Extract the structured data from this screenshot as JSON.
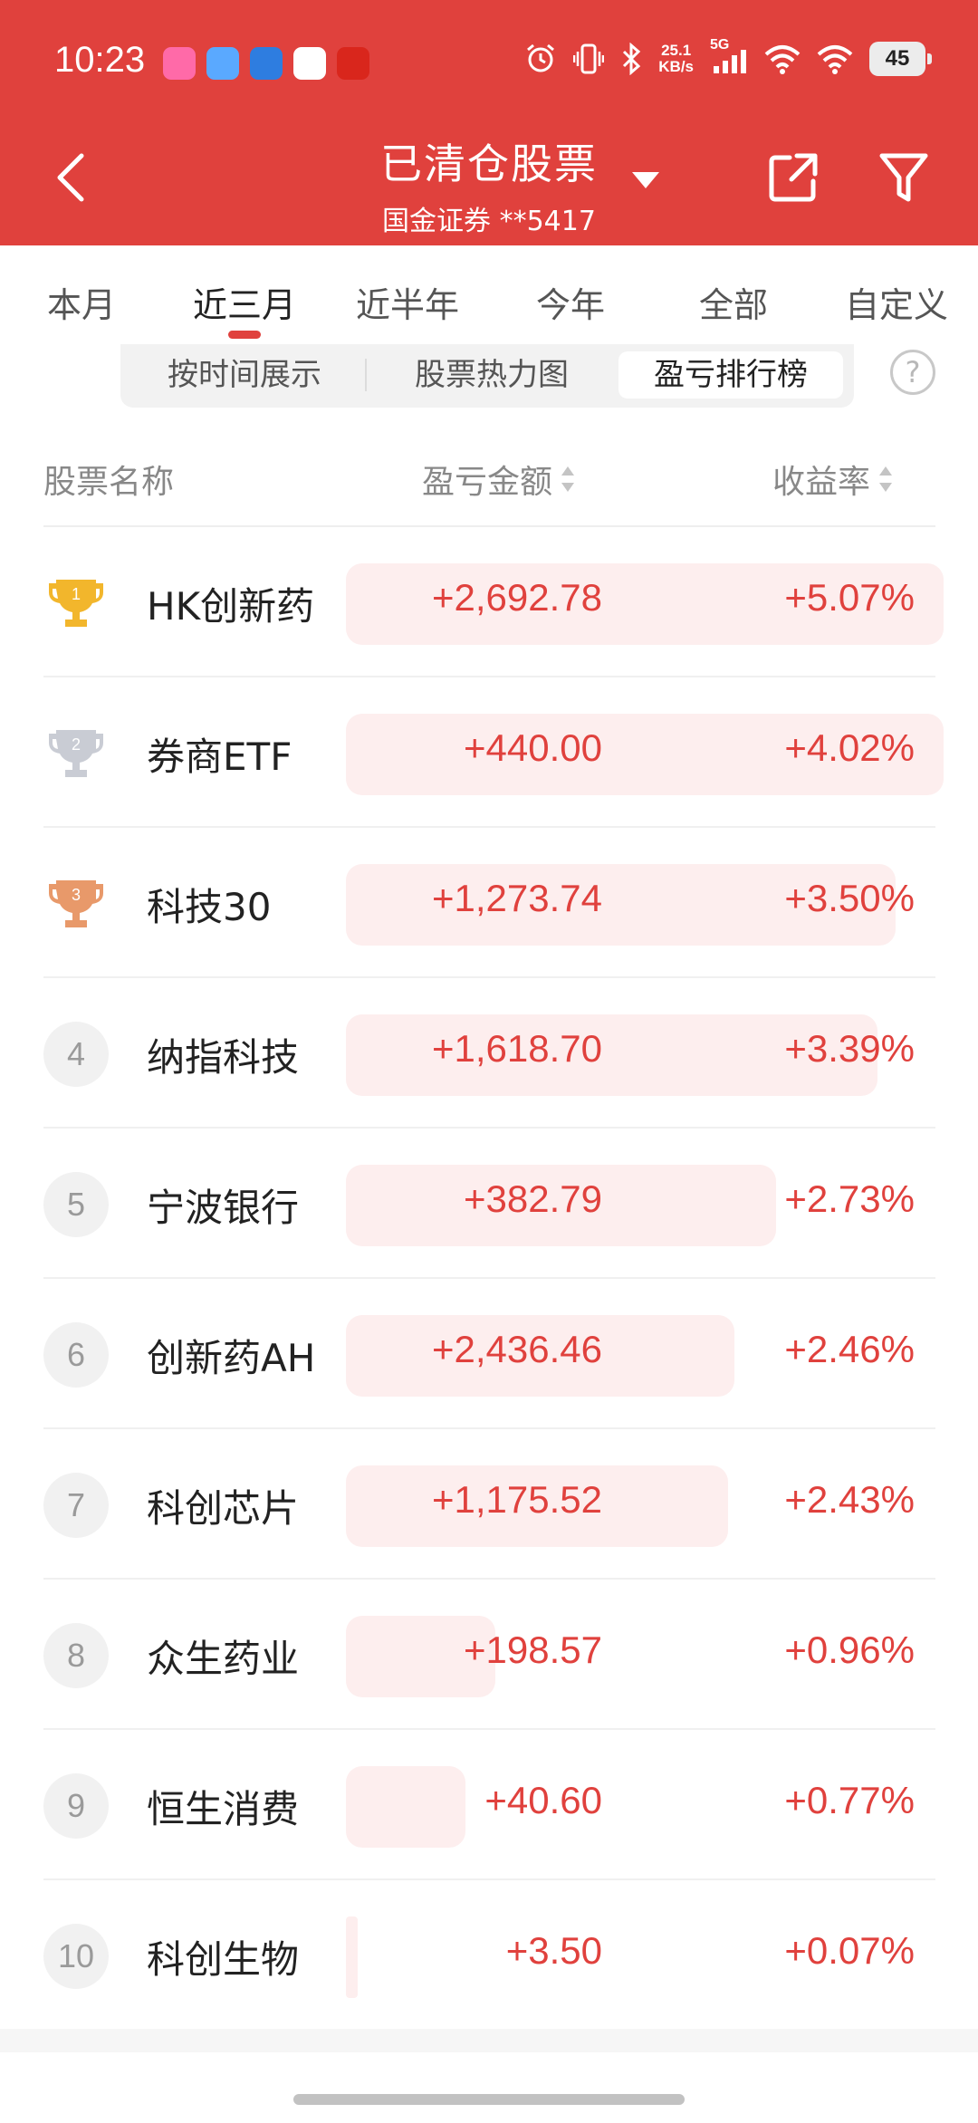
{
  "status_bar": {
    "time": "10:23",
    "net_speed_value": "25.1",
    "net_speed_unit": "KB/s",
    "signal_label": "5G",
    "battery": "45",
    "icons": [
      "alarm-icon",
      "vibrate-icon",
      "bluetooth-icon",
      "signal-icon",
      "wifi-icon",
      "wifi-icon"
    ]
  },
  "header": {
    "title": "已清仓股票",
    "account": "国金证券 **5417",
    "icons": [
      "back-arrow-icon",
      "caret-down-icon",
      "share-icon",
      "filter-icon"
    ]
  },
  "period_tabs": [
    "本月",
    "近三月",
    "近半年",
    "今年",
    "全部",
    "自定义"
  ],
  "period_active_index": 1,
  "view_tabs": [
    "按时间展示",
    "股票热力图",
    "盈亏排行榜"
  ],
  "view_active_index": 2,
  "help_label": "?",
  "columns": {
    "name": "股票名称",
    "amount": "盈亏金额",
    "rate": "收益率"
  },
  "rows": [
    {
      "rank": "1",
      "name": "HK创新药",
      "amount": "+2,692.78",
      "rate": "+5.07%",
      "bar_fraction": 1.0
    },
    {
      "rank": "2",
      "name": "券商ETF",
      "amount": "+440.00",
      "rate": "+4.02%",
      "bar_fraction": 1.0
    },
    {
      "rank": "3",
      "name": "科技30",
      "amount": "+1,273.74",
      "rate": "+3.50%",
      "bar_fraction": 0.92
    },
    {
      "rank": "4",
      "name": "纳指科技",
      "amount": "+1,618.70",
      "rate": "+3.39%",
      "bar_fraction": 0.89
    },
    {
      "rank": "5",
      "name": "宁波银行",
      "amount": "+382.79",
      "rate": "+2.73%",
      "bar_fraction": 0.72
    },
    {
      "rank": "6",
      "name": "创新药AH",
      "amount": "+2,436.46",
      "rate": "+2.46%",
      "bar_fraction": 0.65
    },
    {
      "rank": "7",
      "name": "科创芯片",
      "amount": "+1,175.52",
      "rate": "+2.43%",
      "bar_fraction": 0.64
    },
    {
      "rank": "8",
      "name": "众生药业",
      "amount": "+198.57",
      "rate": "+0.96%",
      "bar_fraction": 0.25
    },
    {
      "rank": "9",
      "name": "恒生消费",
      "amount": "+40.60",
      "rate": "+0.77%",
      "bar_fraction": 0.2
    },
    {
      "rank": "10",
      "name": "科创生物",
      "amount": "+3.50",
      "rate": "+0.07%",
      "bar_fraction": 0.02
    }
  ],
  "colors": {
    "brand_red": "#e0413d",
    "bar_bg": "#fdeeee",
    "gold": "#f2b62c",
    "silver": "#c9ccd4",
    "bronze": "#e8996a"
  }
}
